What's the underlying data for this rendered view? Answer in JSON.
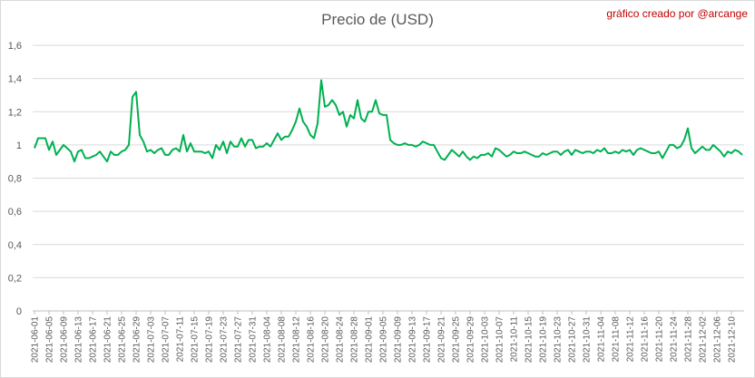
{
  "credit": "gráfico creado por @arcange",
  "chart_data": {
    "type": "line",
    "title": "Precio de (USD)",
    "xlabel": "",
    "ylabel": "",
    "ylim": [
      0,
      1.6
    ],
    "y_ticks": [
      "0",
      "0,2",
      "0,4",
      "0,6",
      "0,8",
      "1",
      "1,2",
      "1,4",
      "1,6"
    ],
    "grid": "horizontal",
    "line_color": "#00b050",
    "x_start": "2021-06-01",
    "x_labels": [
      "2021-06-01",
      "2021-06-05",
      "2021-06-09",
      "2021-06-13",
      "2021-06-17",
      "2021-06-21",
      "2021-06-25",
      "2021-06-29",
      "2021-07-03",
      "2021-07-07",
      "2021-07-11",
      "2021-07-15",
      "2021-07-19",
      "2021-07-23",
      "2021-07-27",
      "2021-07-31",
      "2021-08-04",
      "2021-08-08",
      "2021-08-12",
      "2021-08-16",
      "2021-08-20",
      "2021-08-24",
      "2021-08-28",
      "2021-09-01",
      "2021-09-05",
      "2021-09-09",
      "2021-09-13",
      "2021-09-17",
      "2021-09-21",
      "2021-09-25",
      "2021-09-29",
      "2021-10-03",
      "2021-10-07",
      "2021-10-11",
      "2021-10-15",
      "2021-10-19",
      "2021-10-23",
      "2021-10-27",
      "2021-10-31",
      "2021-11-04",
      "2021-11-08",
      "2021-11-12",
      "2021-11-16",
      "2021-11-20",
      "2021-11-24",
      "2021-11-28",
      "2021-12-02",
      "2021-12-06",
      "2021-12-10"
    ],
    "values": [
      0.98,
      1.04,
      1.04,
      1.04,
      0.97,
      1.02,
      0.94,
      0.97,
      1.0,
      0.98,
      0.96,
      0.9,
      0.96,
      0.97,
      0.92,
      0.92,
      0.93,
      0.94,
      0.96,
      0.93,
      0.9,
      0.96,
      0.94,
      0.94,
      0.96,
      0.97,
      1.0,
      1.29,
      1.32,
      1.06,
      1.02,
      0.96,
      0.97,
      0.95,
      0.97,
      0.98,
      0.94,
      0.94,
      0.97,
      0.98,
      0.96,
      1.06,
      0.96,
      1.01,
      0.96,
      0.96,
      0.96,
      0.95,
      0.96,
      0.92,
      1.0,
      0.97,
      1.02,
      0.95,
      1.02,
      0.99,
      0.99,
      1.04,
      0.99,
      1.03,
      1.03,
      0.98,
      0.99,
      0.99,
      1.01,
      0.99,
      1.03,
      1.07,
      1.03,
      1.05,
      1.05,
      1.09,
      1.14,
      1.22,
      1.14,
      1.11,
      1.06,
      1.04,
      1.13,
      1.39,
      1.23,
      1.24,
      1.27,
      1.24,
      1.18,
      1.2,
      1.11,
      1.18,
      1.16,
      1.27,
      1.16,
      1.14,
      1.2,
      1.2,
      1.27,
      1.19,
      1.18,
      1.18,
      1.03,
      1.01,
      1.0,
      1.0,
      1.01,
      1.0,
      1.0,
      0.99,
      1.0,
      1.02,
      1.01,
      1.0,
      1.0,
      0.96,
      0.92,
      0.91,
      0.94,
      0.97,
      0.95,
      0.93,
      0.96,
      0.93,
      0.91,
      0.93,
      0.92,
      0.94,
      0.94,
      0.95,
      0.93,
      0.98,
      0.97,
      0.95,
      0.93,
      0.94,
      0.96,
      0.95,
      0.95,
      0.96,
      0.95,
      0.94,
      0.93,
      0.93,
      0.95,
      0.94,
      0.95,
      0.96,
      0.96,
      0.94,
      0.96,
      0.97,
      0.94,
      0.97,
      0.96,
      0.95,
      0.96,
      0.96,
      0.95,
      0.97,
      0.96,
      0.98,
      0.95,
      0.95,
      0.96,
      0.95,
      0.97,
      0.96,
      0.97,
      0.94,
      0.97,
      0.98,
      0.97,
      0.96,
      0.95,
      0.95,
      0.96,
      0.92,
      0.96,
      1.0,
      1.0,
      0.98,
      0.99,
      1.03,
      1.1,
      0.98,
      0.95,
      0.97,
      0.99,
      0.97,
      0.97,
      1.0,
      0.98,
      0.96,
      0.93,
      0.96,
      0.95,
      0.97,
      0.96,
      0.94
    ]
  }
}
